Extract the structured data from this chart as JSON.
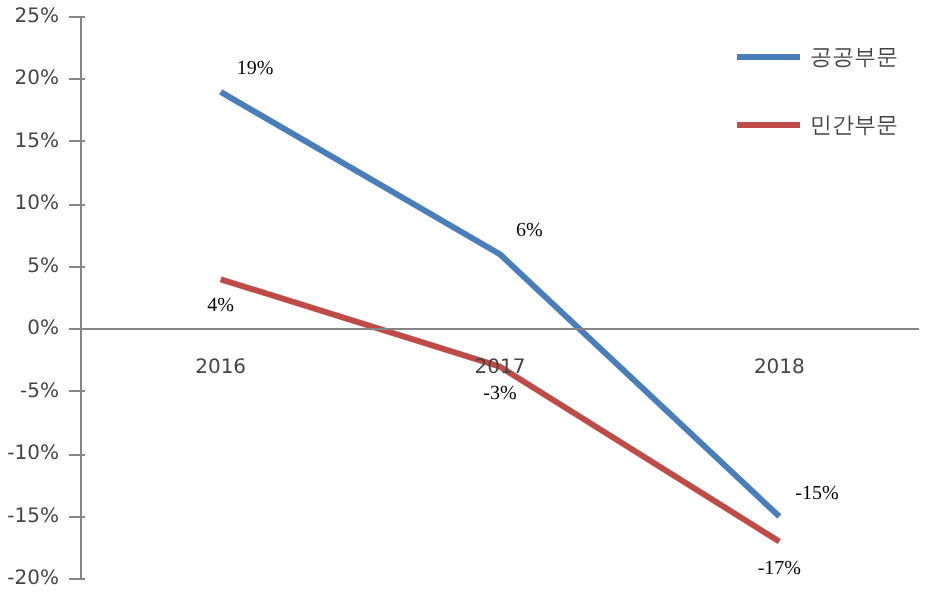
{
  "chart_data": {
    "type": "line",
    "categories": [
      "2016",
      "2017",
      "2018"
    ],
    "series": [
      {
        "name": "공공부문",
        "color": "#4a7ebb",
        "values": [
          19,
          6,
          -15
        ],
        "value_labels": [
          "19%",
          "6%",
          "-15%"
        ]
      },
      {
        "name": "민간부문",
        "color": "#be4b48",
        "values": [
          4,
          -3,
          -17
        ],
        "value_labels": [
          "4%",
          "-3%",
          "-17%"
        ]
      }
    ],
    "ylim": [
      -20,
      25
    ],
    "yticks": [
      {
        "value": -20,
        "label": "-20%"
      },
      {
        "value": -15,
        "label": "-15%"
      },
      {
        "value": -10,
        "label": "-10%"
      },
      {
        "value": -5,
        "label": "-5%"
      },
      {
        "value": 0,
        "label": "0%"
      },
      {
        "value": 5,
        "label": "5%"
      },
      {
        "value": 10,
        "label": "10%"
      },
      {
        "value": 15,
        "label": "15%"
      },
      {
        "value": 20,
        "label": "20%"
      },
      {
        "value": 25,
        "label": "25%"
      }
    ],
    "grid": false,
    "legend": "top right",
    "marker": "none",
    "line_style": "solid"
  }
}
